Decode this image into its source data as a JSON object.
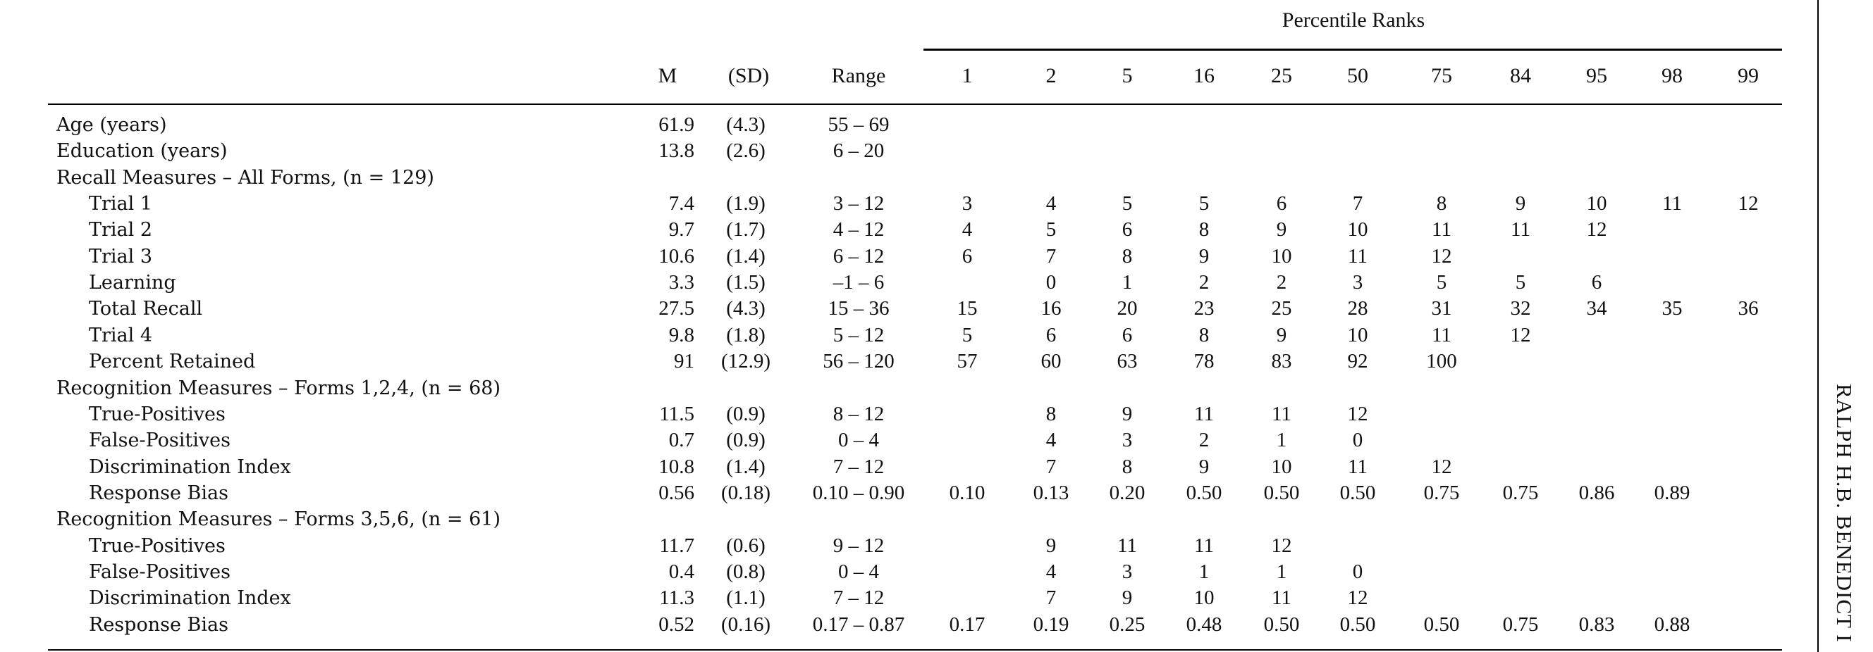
{
  "table": {
    "spanner": "Percentile Ranks",
    "headers": {
      "m": "M",
      "sd": "(SD)",
      "range": "Range",
      "percentiles": [
        "1",
        "2",
        "5",
        "16",
        "25",
        "50",
        "75",
        "84",
        "95",
        "98",
        "99"
      ]
    },
    "rows": [
      {
        "label": "Age (years)",
        "indent": false,
        "m": "61.9",
        "sd": "(4.3)",
        "range": "55 – 69",
        "p": [
          "",
          "",
          "",
          "",
          "",
          "",
          "",
          "",
          "",
          "",
          ""
        ]
      },
      {
        "label": "Education (years)",
        "indent": false,
        "m": "13.8",
        "sd": "(2.6)",
        "range": "6 – 20",
        "p": [
          "",
          "",
          "",
          "",
          "",
          "",
          "",
          "",
          "",
          "",
          ""
        ]
      },
      {
        "label": "Recall Measures – All Forms, (n = 129)",
        "indent": false,
        "m": "",
        "sd": "",
        "range": "",
        "p": [
          "",
          "",
          "",
          "",
          "",
          "",
          "",
          "",
          "",
          "",
          ""
        ]
      },
      {
        "label": "Trial 1",
        "indent": true,
        "m": "7.4",
        "sd": "(1.9)",
        "range": "3 – 12",
        "p": [
          "3",
          "4",
          "5",
          "5",
          "6",
          "7",
          "8",
          "9",
          "10",
          "11",
          "12"
        ]
      },
      {
        "label": "Trial 2",
        "indent": true,
        "m": "9.7",
        "sd": "(1.7)",
        "range": "4 – 12",
        "p": [
          "4",
          "5",
          "6",
          "8",
          "9",
          "10",
          "11",
          "11",
          "12",
          "",
          ""
        ]
      },
      {
        "label": "Trial 3",
        "indent": true,
        "m": "10.6",
        "sd": "(1.4)",
        "range": "6 – 12",
        "p": [
          "6",
          "7",
          "8",
          "9",
          "10",
          "11",
          "12",
          "",
          "",
          "",
          ""
        ]
      },
      {
        "label": "Learning",
        "indent": true,
        "m": "3.3",
        "sd": "(1.5)",
        "range": "–1 – 6",
        "p": [
          "",
          "0",
          "1",
          "2",
          "2",
          "3",
          "5",
          "5",
          "6",
          "",
          ""
        ]
      },
      {
        "label": "Total Recall",
        "indent": true,
        "m": "27.5",
        "sd": "(4.3)",
        "range": "15 – 36",
        "p": [
          "15",
          "16",
          "20",
          "23",
          "25",
          "28",
          "31",
          "32",
          "34",
          "35",
          "36"
        ]
      },
      {
        "label": "Trial 4",
        "indent": true,
        "m": "9.8",
        "sd": "(1.8)",
        "range": "5 – 12",
        "p": [
          "5",
          "6",
          "6",
          "8",
          "9",
          "10",
          "11",
          "12",
          "",
          "",
          ""
        ]
      },
      {
        "label": "Percent Retained",
        "indent": true,
        "m": "91",
        "sd": "(12.9)",
        "range": "56 – 120",
        "p": [
          "57",
          "60",
          "63",
          "78",
          "83",
          "92",
          "100",
          "",
          "",
          "",
          ""
        ]
      },
      {
        "label": "Recognition Measures – Forms 1,2,4, (n = 68)",
        "indent": false,
        "m": "",
        "sd": "",
        "range": "",
        "p": [
          "",
          "",
          "",
          "",
          "",
          "",
          "",
          "",
          "",
          "",
          ""
        ]
      },
      {
        "label": "True-Positives",
        "indent": true,
        "m": "11.5",
        "sd": "(0.9)",
        "range": "8 – 12",
        "p": [
          "",
          "8",
          "9",
          "11",
          "11",
          "12",
          "",
          "",
          "",
          "",
          ""
        ]
      },
      {
        "label": "False-Positives",
        "indent": true,
        "m": "0.7",
        "sd": "(0.9)",
        "range": "0 – 4",
        "p": [
          "",
          "4",
          "3",
          "2",
          "1",
          "0",
          "",
          "",
          "",
          "",
          ""
        ]
      },
      {
        "label": "Discrimination Index",
        "indent": true,
        "m": "10.8",
        "sd": "(1.4)",
        "range": "7 – 12",
        "p": [
          "",
          "7",
          "8",
          "9",
          "10",
          "11",
          "12",
          "",
          "",
          "",
          ""
        ]
      },
      {
        "label": "Response Bias",
        "indent": true,
        "m": "0.56",
        "sd": "(0.18)",
        "range": "0.10 – 0.90",
        "p": [
          "0.10",
          "0.13",
          "0.20",
          "0.50",
          "0.50",
          "0.50",
          "0.75",
          "0.75",
          "0.86",
          "0.89",
          ""
        ]
      },
      {
        "label": "Recognition Measures – Forms 3,5,6, (n = 61)",
        "indent": false,
        "m": "",
        "sd": "",
        "range": "",
        "p": [
          "",
          "",
          "",
          "",
          "",
          "",
          "",
          "",
          "",
          "",
          ""
        ]
      },
      {
        "label": "True-Positives",
        "indent": true,
        "m": "11.7",
        "sd": "(0.6)",
        "range": "9 – 12",
        "p": [
          "",
          "9",
          "11",
          "11",
          "12",
          "",
          "",
          "",
          "",
          "",
          ""
        ]
      },
      {
        "label": "False-Positives",
        "indent": true,
        "m": "0.4",
        "sd": "(0.8)",
        "range": "0 – 4",
        "p": [
          "",
          "4",
          "3",
          "1",
          "1",
          "0",
          "",
          "",
          "",
          "",
          ""
        ]
      },
      {
        "label": "Discrimination Index",
        "indent": true,
        "m": "11.3",
        "sd": "(1.1)",
        "range": "7 – 12",
        "p": [
          "",
          "7",
          "9",
          "10",
          "11",
          "12",
          "",
          "",
          "",
          "",
          ""
        ]
      },
      {
        "label": "Response Bias",
        "indent": true,
        "m": "0.52",
        "sd": "(0.16)",
        "range": "0.17 – 0.87",
        "p": [
          "0.17",
          "0.19",
          "0.25",
          "0.48",
          "0.50",
          "0.50",
          "0.50",
          "0.75",
          "0.83",
          "0.88",
          ""
        ]
      }
    ]
  },
  "running_head": "RALPH H.B. BENEDICT I"
}
